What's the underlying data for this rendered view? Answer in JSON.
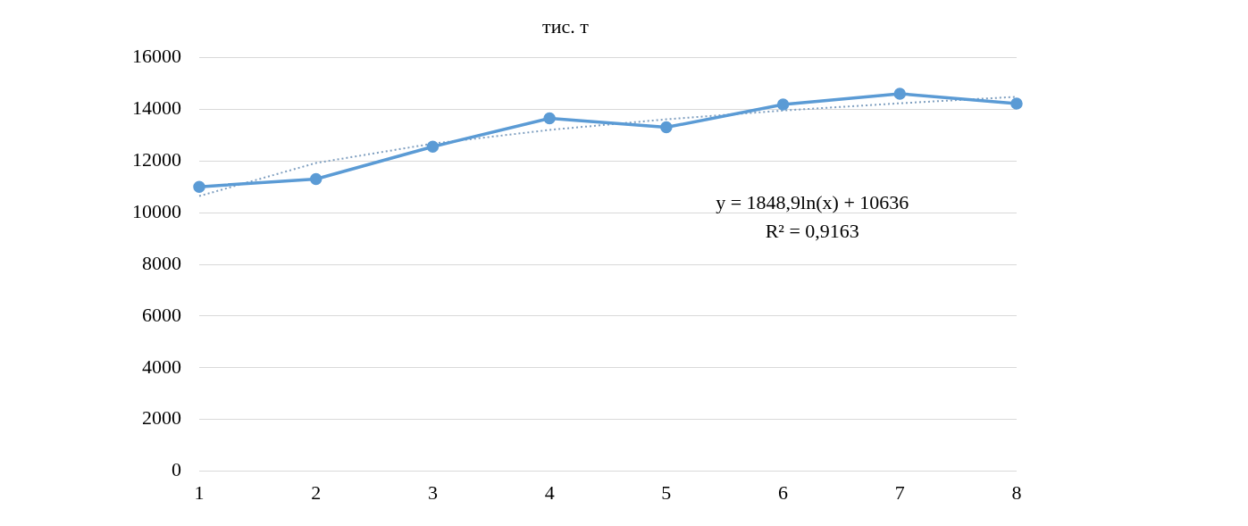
{
  "chart_data": {
    "type": "line",
    "title": "тис. т",
    "categories": [
      "1",
      "2",
      "3",
      "4",
      "5",
      "6",
      "7",
      "8"
    ],
    "series": [
      {
        "color": "#5b9bd5",
        "values": [
          11000,
          11300,
          12550,
          13650,
          13300,
          14180,
          14600,
          14220
        ],
        "marker": "circle",
        "line_style": "solid"
      },
      {
        "type": "line",
        "color": "#7f9fc0",
        "values": [
          10640,
          11920,
          12670,
          13200,
          13610,
          13950,
          14230,
          14480
        ],
        "marker": "none",
        "line_style": "dotted"
      }
    ],
    "ylim": [
      0,
      16000
    ],
    "yticks": [
      0,
      2000,
      4000,
      6000,
      8000,
      10000,
      12000,
      14000,
      16000
    ],
    "grid": "y",
    "annotations": [
      "y = 1848,9ln(x) + 10636",
      "R² = 0,9163"
    ]
  }
}
